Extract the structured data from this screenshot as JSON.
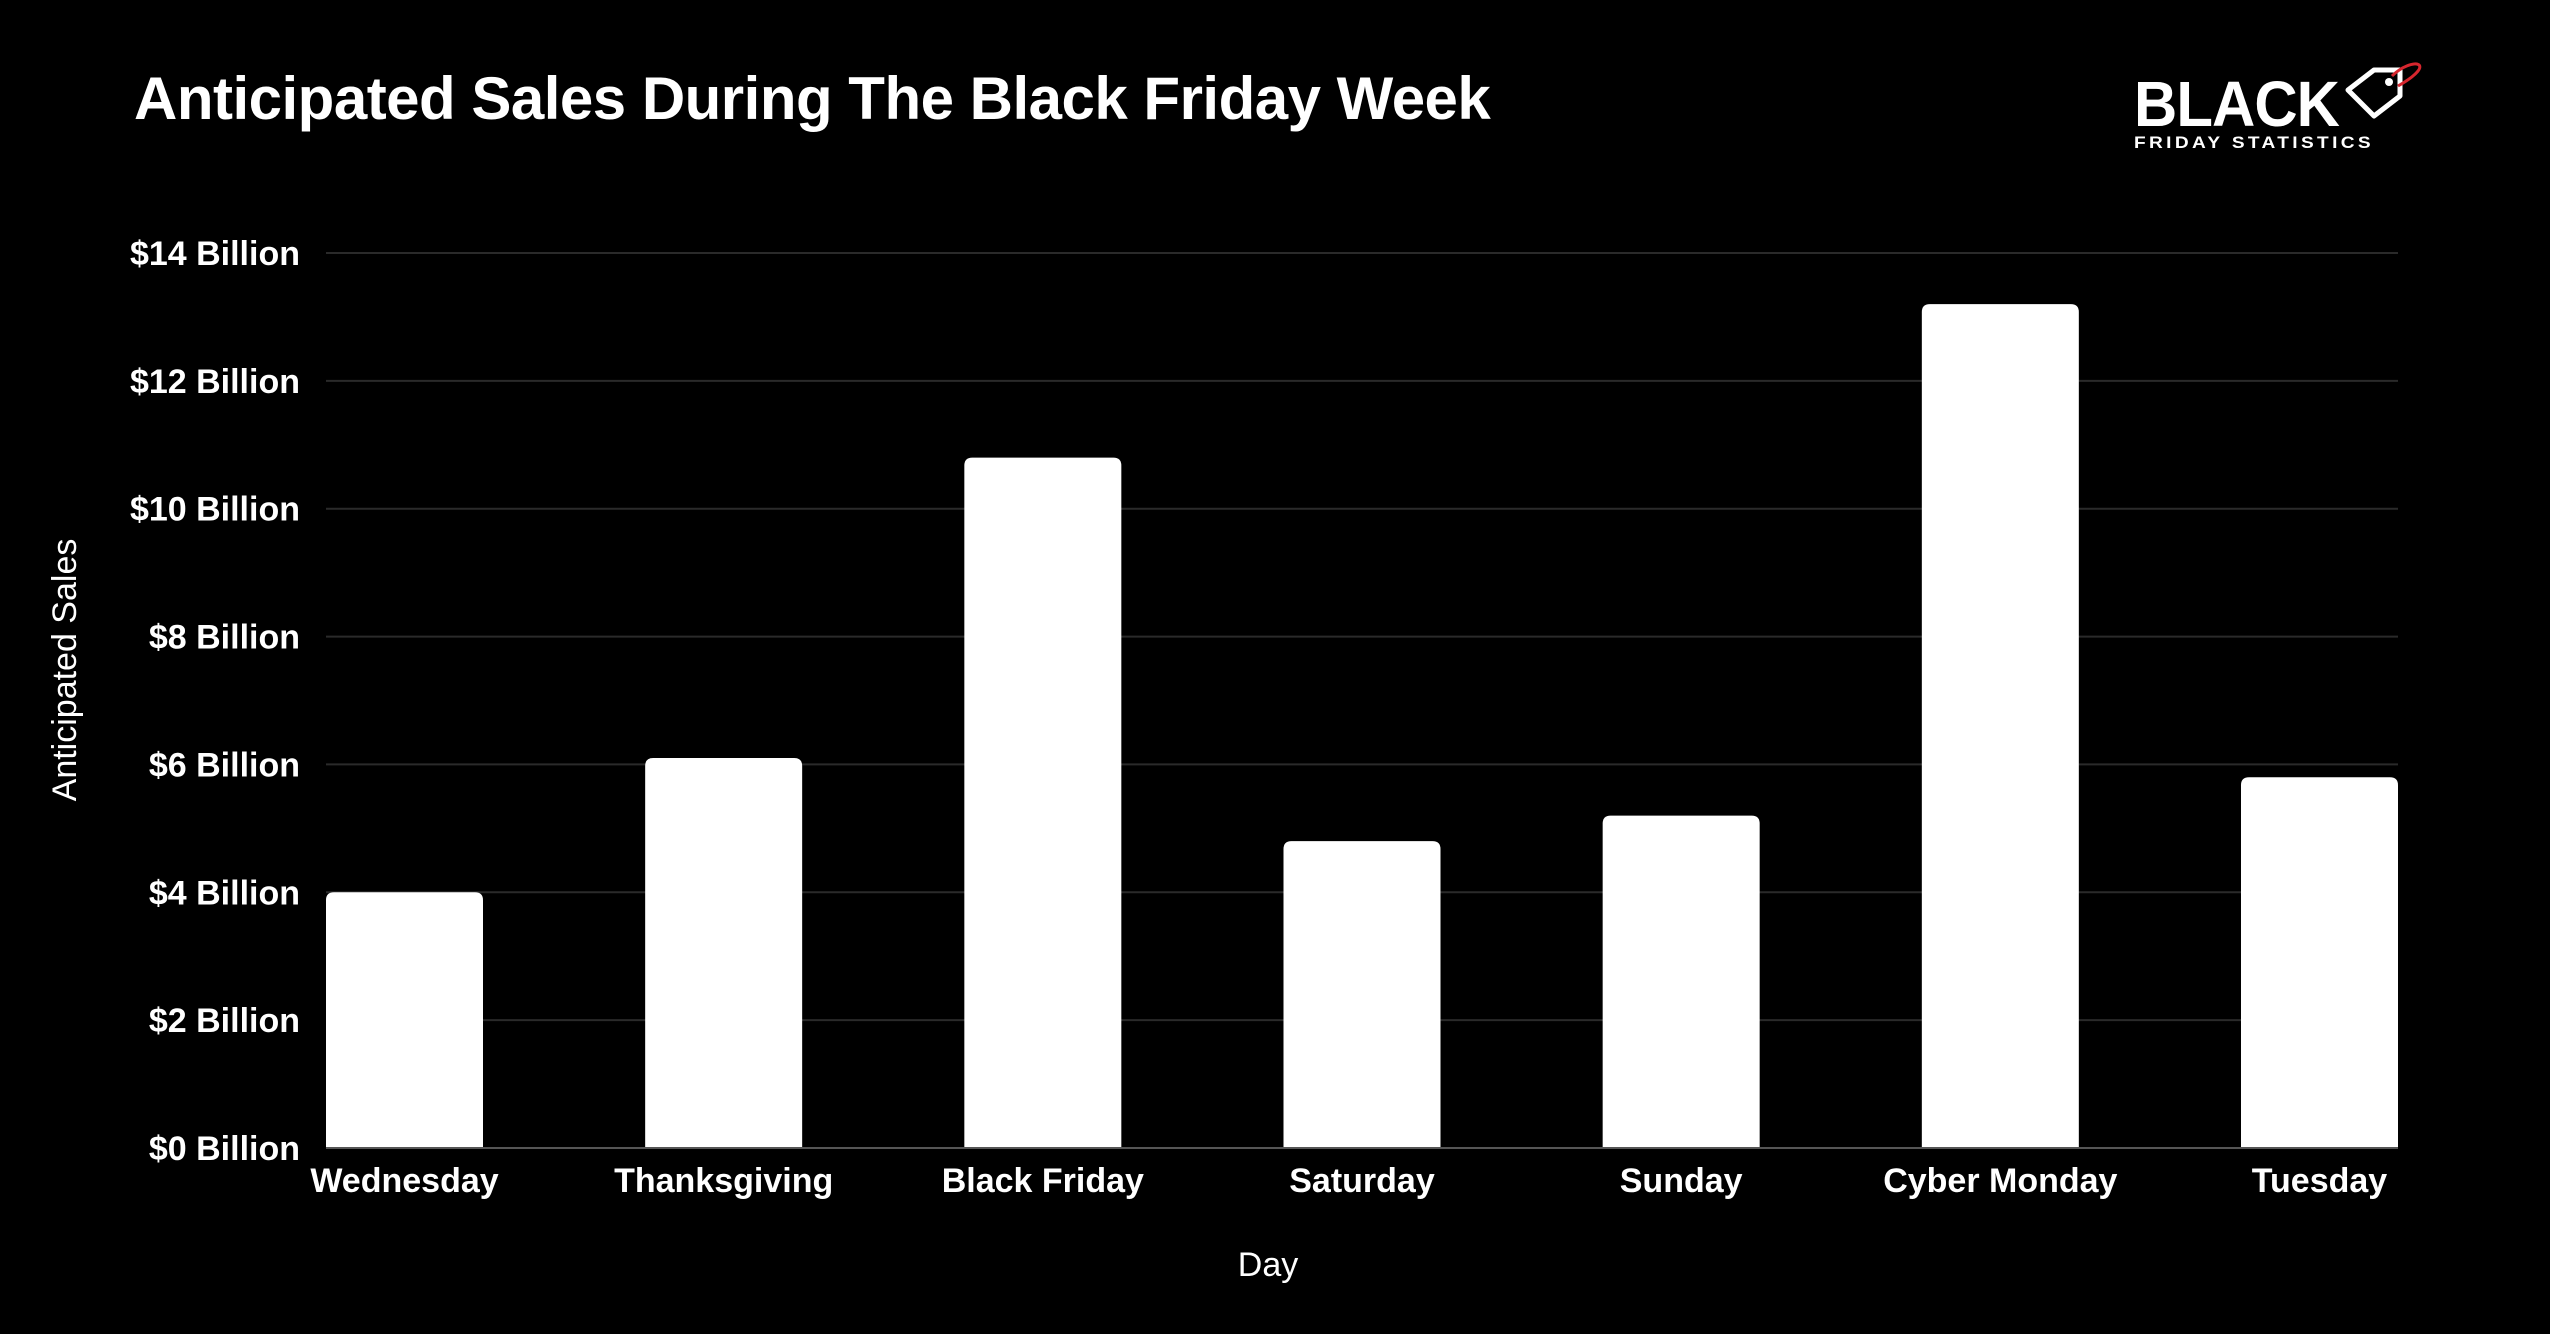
{
  "brand": {
    "wordmark": "BLACK",
    "tagline": "FRIDAY STATISTICS",
    "accent_color": "#d6262e"
  },
  "chart_data": {
    "type": "bar",
    "title": "Anticipated Sales During The Black Friday Week",
    "xlabel": "Day",
    "ylabel": "Anticipated Sales",
    "categories": [
      "Wednesday",
      "Thanksgiving",
      "Black Friday",
      "Saturday",
      "Sunday",
      "Cyber Monday",
      "Tuesday"
    ],
    "values": [
      4.0,
      6.1,
      10.8,
      4.8,
      5.2,
      13.2,
      5.8
    ],
    "unit": "Billion",
    "ylim": [
      0,
      14
    ],
    "yticks": [
      0,
      2,
      4,
      6,
      8,
      10,
      12,
      14
    ],
    "ytick_labels": [
      "$0 Billion",
      "$2 Billion",
      "$4 Billion",
      "$6 Billion",
      "$8 Billion",
      "$10 Billion",
      "$12 Billion",
      "$14 Billion"
    ],
    "grid": true,
    "legend": "none",
    "bar_color": "#ffffff",
    "background_color": "#000000",
    "grid_color": "#2a2a2a"
  }
}
